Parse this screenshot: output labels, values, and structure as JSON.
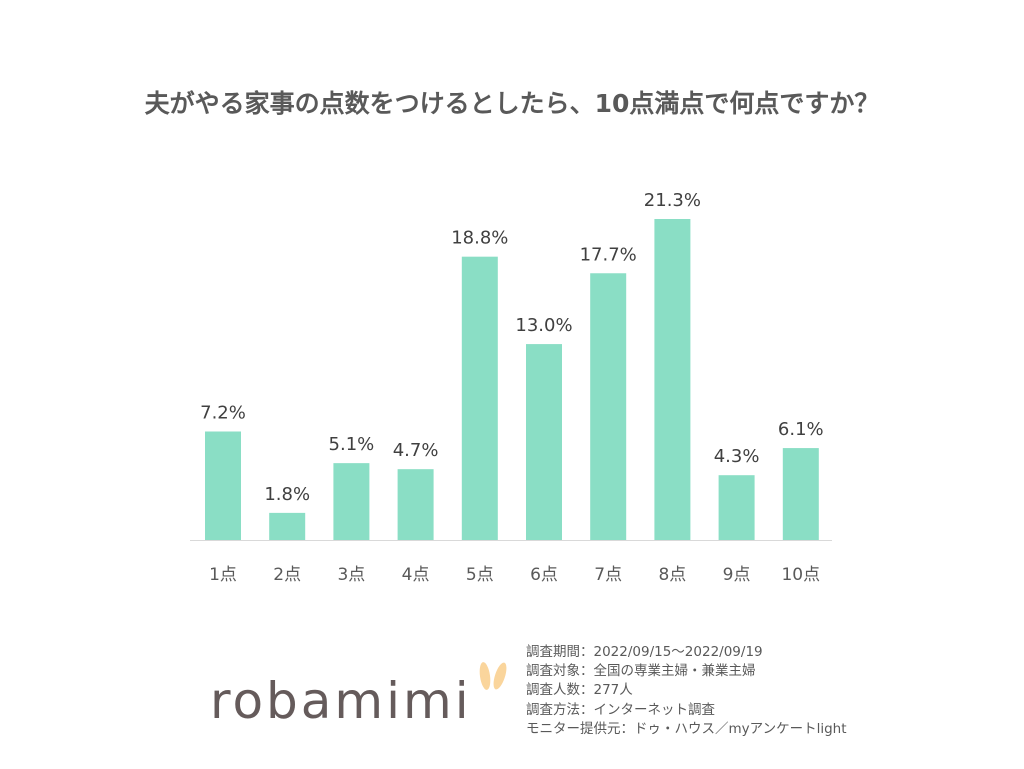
{
  "chart_data": {
    "type": "bar",
    "title": "夫がやる家事の点数をつけるとしたら、10点満点で何点ですか？",
    "categories": [
      "1点",
      "2点",
      "3点",
      "4点",
      "5点",
      "6点",
      "7点",
      "8点",
      "9点",
      "10点"
    ],
    "values": [
      7.2,
      1.8,
      5.1,
      4.7,
      18.8,
      13.0,
      17.7,
      21.3,
      4.3,
      6.1
    ],
    "data_labels": [
      "7.2%",
      "1.8%",
      "5.1%",
      "4.7%",
      "18.8%",
      "13.0%",
      "17.7%",
      "21.3%",
      "4.3%",
      "6.1%"
    ],
    "unit": "%",
    "ylim": [
      0,
      21.3
    ],
    "grid": false,
    "bar_color": "#8ADEC5"
  },
  "logo": {
    "text": "robamimi",
    "text_color": "#655B5B",
    "ear_color": "#FAD59C"
  },
  "notes": [
    "調査期間：2022/09/15～2022/09/19",
    "調査対象：全国の専業主婦・兼業主婦",
    "調査人数：277人",
    "調査方法：インターネット調査",
    "モニター提供元：ドゥ・ハウス／myアンケートlight"
  ]
}
